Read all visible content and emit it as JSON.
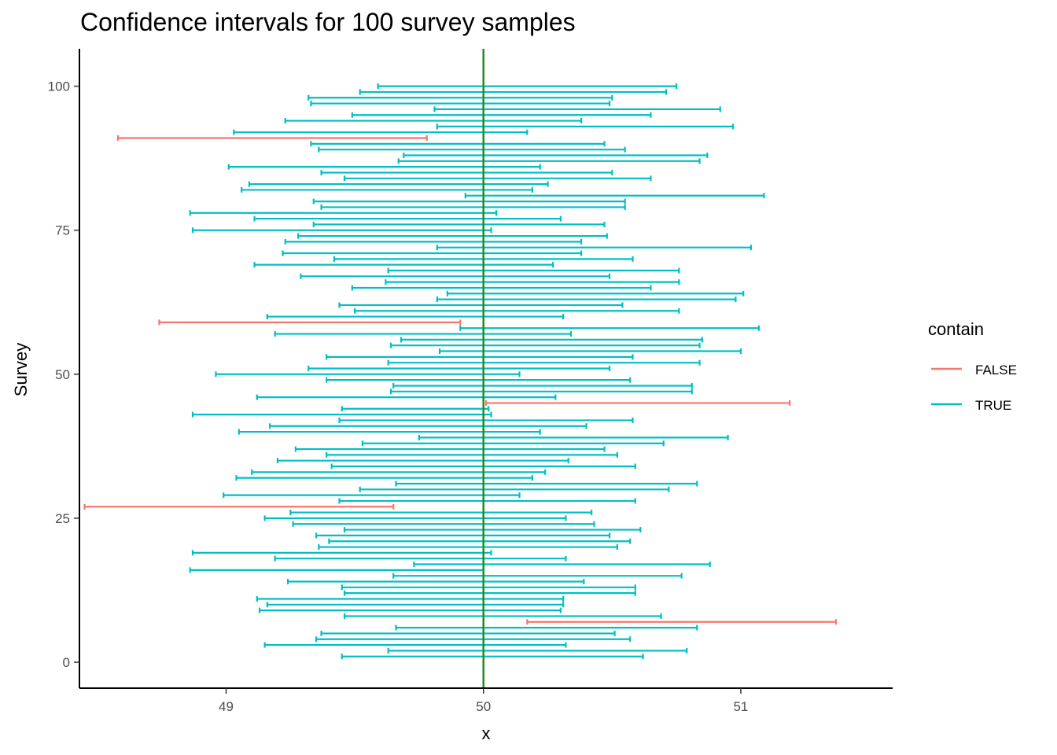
{
  "chart_data": {
    "type": "errorbar-h",
    "title": "Confidence intervals for 100 survey samples",
    "xlabel": "x",
    "ylabel": "Survey",
    "xlim": [
      48.43,
      51.59
    ],
    "ylim": [
      -4.5,
      106.5
    ],
    "x_ticks": [
      49,
      50,
      51
    ],
    "y_ticks": [
      0,
      25,
      50,
      75,
      100
    ],
    "reference_line": {
      "x": 50,
      "color": "#228B22"
    },
    "grid": false,
    "legend": {
      "title": "contain",
      "position": "right",
      "entries": [
        {
          "label": "FALSE",
          "color": "#F8766D"
        },
        {
          "label": "TRUE",
          "color": "#00BFC4"
        }
      ]
    },
    "series": [
      {
        "name": "FALSE",
        "color": "#F8766D",
        "intervals": [
          [
            91,
            48.58,
            49.78
          ],
          [
            59,
            48.74,
            49.91
          ],
          [
            45,
            50.01,
            51.19
          ],
          [
            27,
            48.45,
            49.65
          ],
          [
            7,
            50.17,
            51.37
          ]
        ]
      },
      {
        "name": "TRUE",
        "color": "#00BFC4",
        "intervals": [
          [
            100,
            49.59,
            50.75
          ],
          [
            99,
            49.52,
            50.71
          ],
          [
            98,
            49.32,
            50.5
          ],
          [
            97,
            49.33,
            50.49
          ],
          [
            96,
            49.81,
            50.92
          ],
          [
            95,
            49.49,
            50.65
          ],
          [
            94,
            49.23,
            50.38
          ],
          [
            93,
            49.82,
            50.97
          ],
          [
            92,
            49.03,
            50.17
          ],
          [
            90,
            49.33,
            50.47
          ],
          [
            89,
            49.36,
            50.55
          ],
          [
            88,
            49.69,
            50.87
          ],
          [
            87,
            49.67,
            50.84
          ],
          [
            86,
            49.01,
            50.22
          ],
          [
            85,
            49.37,
            50.5
          ],
          [
            84,
            49.46,
            50.65
          ],
          [
            83,
            49.09,
            50.25
          ],
          [
            82,
            49.06,
            50.19
          ],
          [
            81,
            49.93,
            51.09
          ],
          [
            80,
            49.34,
            50.55
          ],
          [
            79,
            49.37,
            50.55
          ],
          [
            78,
            48.86,
            50.05
          ],
          [
            77,
            49.11,
            50.3
          ],
          [
            76,
            49.34,
            50.47
          ],
          [
            75,
            48.87,
            50.03
          ],
          [
            74,
            49.28,
            50.48
          ],
          [
            73,
            49.23,
            50.38
          ],
          [
            72,
            49.82,
            51.04
          ],
          [
            71,
            49.22,
            50.38
          ],
          [
            70,
            49.42,
            50.58
          ],
          [
            69,
            49.11,
            50.27
          ],
          [
            68,
            49.63,
            50.76
          ],
          [
            67,
            49.29,
            50.49
          ],
          [
            66,
            49.62,
            50.76
          ],
          [
            65,
            49.49,
            50.65
          ],
          [
            64,
            49.86,
            51.01
          ],
          [
            63,
            49.82,
            50.98
          ],
          [
            62,
            49.44,
            50.54
          ],
          [
            61,
            49.5,
            50.76
          ],
          [
            60,
            49.16,
            50.31
          ],
          [
            58,
            49.91,
            51.07
          ],
          [
            57,
            49.19,
            50.34
          ],
          [
            56,
            49.68,
            50.85
          ],
          [
            55,
            49.64,
            50.84
          ],
          [
            54,
            49.83,
            51.0
          ],
          [
            53,
            49.39,
            50.58
          ],
          [
            52,
            49.63,
            50.84
          ],
          [
            51,
            49.32,
            50.49
          ],
          [
            50,
            48.96,
            50.14
          ],
          [
            49,
            49.39,
            50.57
          ],
          [
            48,
            49.65,
            50.81
          ],
          [
            47,
            49.64,
            50.81
          ],
          [
            46,
            49.12,
            50.28
          ],
          [
            44,
            49.45,
            50.02
          ],
          [
            43,
            48.87,
            50.03
          ],
          [
            42,
            49.44,
            50.58
          ],
          [
            41,
            49.17,
            50.4
          ],
          [
            40,
            49.05,
            50.22
          ],
          [
            39,
            49.75,
            50.95
          ],
          [
            38,
            49.53,
            50.7
          ],
          [
            37,
            49.27,
            50.47
          ],
          [
            36,
            49.39,
            50.52
          ],
          [
            35,
            49.2,
            50.33
          ],
          [
            34,
            49.41,
            50.59
          ],
          [
            33,
            49.1,
            50.24
          ],
          [
            32,
            49.04,
            50.19
          ],
          [
            31,
            49.66,
            50.83
          ],
          [
            30,
            49.52,
            50.72
          ],
          [
            29,
            48.99,
            50.14
          ],
          [
            28,
            49.44,
            50.59
          ],
          [
            26,
            49.25,
            50.42
          ],
          [
            25,
            49.15,
            50.32
          ],
          [
            24,
            49.26,
            50.43
          ],
          [
            23,
            49.46,
            50.61
          ],
          [
            22,
            49.35,
            50.49
          ],
          [
            21,
            49.4,
            50.57
          ],
          [
            20,
            49.36,
            50.52
          ],
          [
            19,
            48.87,
            50.03
          ],
          [
            18,
            49.19,
            50.32
          ],
          [
            17,
            49.73,
            50.88
          ],
          [
            16,
            48.86,
            50.0
          ],
          [
            15,
            49.65,
            50.77
          ],
          [
            14,
            49.24,
            50.39
          ],
          [
            13,
            49.45,
            50.59
          ],
          [
            12,
            49.46,
            50.59
          ],
          [
            11,
            49.12,
            50.31
          ],
          [
            10,
            49.16,
            50.31
          ],
          [
            9,
            49.13,
            50.3
          ],
          [
            8,
            49.46,
            50.69
          ],
          [
            6,
            49.66,
            50.83
          ],
          [
            5,
            49.37,
            50.51
          ],
          [
            4,
            49.35,
            50.57
          ],
          [
            3,
            49.15,
            50.32
          ],
          [
            2,
            49.63,
            50.79
          ],
          [
            1,
            49.45,
            50.62
          ]
        ]
      }
    ]
  }
}
